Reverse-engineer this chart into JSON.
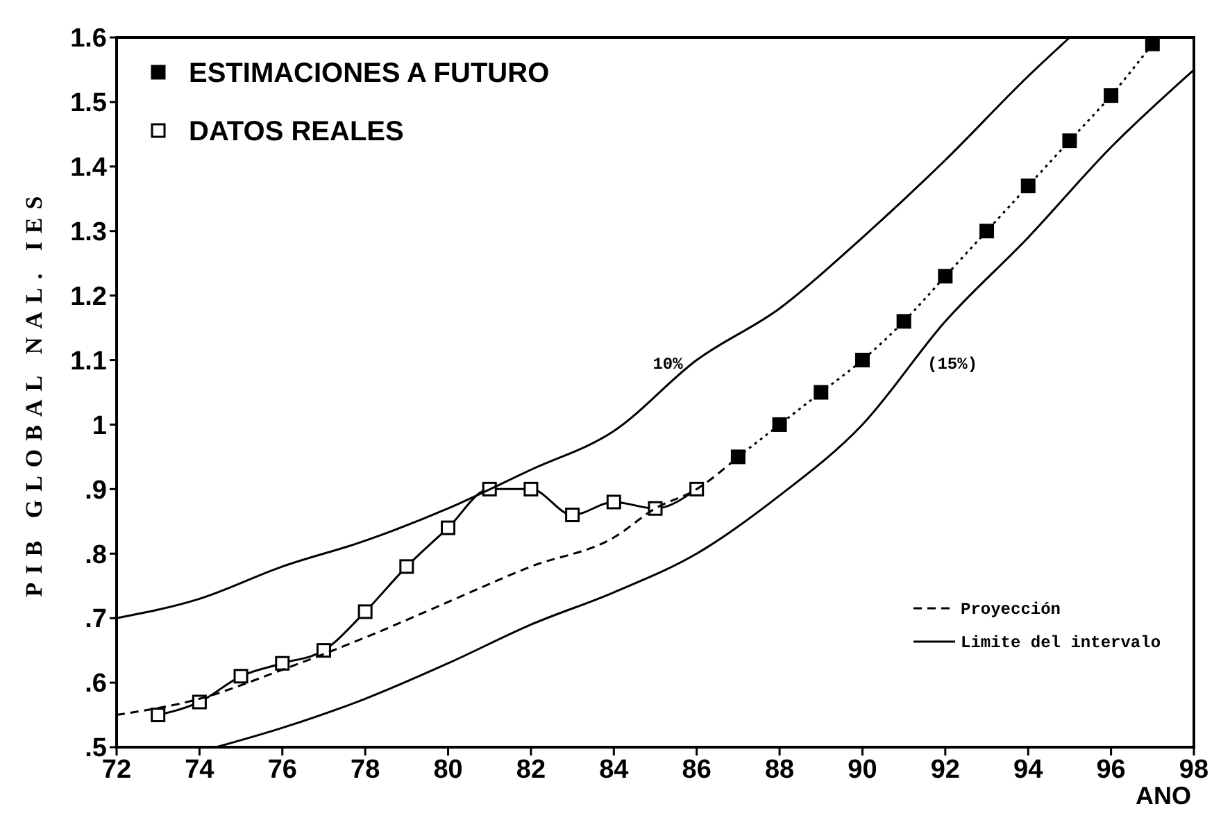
{
  "chart_data": {
    "type": "line",
    "xlabel": "ANO",
    "ylabel": "PIB GLOBAL NAL. IES",
    "xlim": [
      72,
      98
    ],
    "xticks": [
      72,
      74,
      76,
      78,
      80,
      82,
      84,
      86,
      88,
      90,
      92,
      94,
      96,
      98
    ],
    "ylim": [
      0.5,
      1.6
    ],
    "yticks": [
      {
        "value": 0.5,
        "label": ".5"
      },
      {
        "value": 0.6,
        "label": ".6"
      },
      {
        "value": 0.7,
        "label": ".7"
      },
      {
        "value": 0.8,
        "label": ".8"
      },
      {
        "value": 0.9,
        "label": ".9"
      },
      1,
      1.1,
      1.2,
      1.3,
      1.4,
      1.5,
      1.6
    ],
    "legend": "top left",
    "grid": false,
    "annotations": [
      {
        "text": "10%",
        "x": 86,
        "y": 1.1
      },
      {
        "text": "(15%)",
        "x": 91.3,
        "y": 1.1
      }
    ],
    "series": [
      {
        "name": "ESTIMACIONES A FUTURO",
        "color": "#000000",
        "marker": "square",
        "line_style": "dotted",
        "x": [
          87,
          88,
          89,
          90,
          91,
          92,
          93,
          94,
          95,
          96,
          97
        ],
        "values": [
          0.95,
          1.0,
          1.05,
          1.1,
          1.16,
          1.23,
          1.3,
          1.37,
          1.44,
          1.51,
          1.59
        ]
      },
      {
        "name": "DATOS REALES",
        "color": "#000000",
        "marker": "square",
        "line_style": "solid",
        "x": [
          73,
          74,
          75,
          76,
          77,
          78,
          79,
          80,
          81,
          82,
          83,
          84,
          85,
          86
        ],
        "values": [
          0.55,
          0.57,
          0.61,
          0.63,
          0.65,
          0.71,
          0.78,
          0.84,
          0.9,
          0.9,
          0.86,
          0.88,
          0.87,
          0.9
        ]
      },
      {
        "name": "Proyección",
        "color": "#000000",
        "marker": "none",
        "line_style": "dashed",
        "x": [
          72,
          74,
          76,
          78,
          80,
          82,
          84,
          85,
          86,
          87
        ],
        "values": [
          0.55,
          0.575,
          0.62,
          0.67,
          0.725,
          0.78,
          0.825,
          0.87,
          0.9,
          0.95
        ]
      },
      {
        "name": "Limite del intervalo",
        "color": "#000000",
        "marker": "none",
        "line_style": "solid",
        "x": [
          72,
          74,
          76,
          78,
          80,
          82,
          84,
          86,
          88,
          90,
          92,
          94,
          95
        ],
        "values": [
          0.7,
          0.73,
          0.78,
          0.82,
          0.87,
          0.93,
          0.99,
          1.1,
          1.18,
          1.29,
          1.41,
          1.54,
          1.6
        ]
      },
      {
        "color": "#000000",
        "marker": "none",
        "line_style": "solid",
        "x": [
          74.4,
          76,
          78,
          80,
          82,
          84,
          86,
          88,
          90,
          92,
          94,
          96,
          98
        ],
        "values": [
          0.5,
          0.53,
          0.575,
          0.63,
          0.69,
          0.74,
          0.8,
          0.89,
          1.0,
          1.16,
          1.29,
          1.43,
          1.55
        ]
      }
    ]
  }
}
